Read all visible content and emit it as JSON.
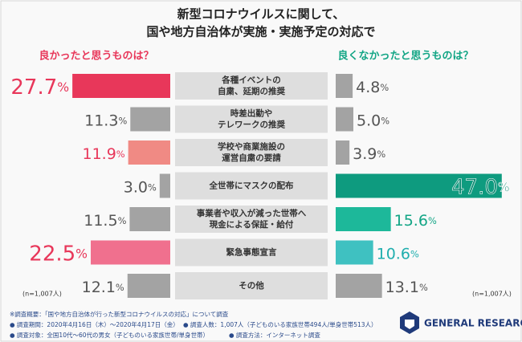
{
  "chart_data": {
    "type": "butterfly-bar",
    "title": [
      "新型コロナウイルスに関して、",
      "国や地方自治体が実施・実施予定の対応で"
    ],
    "categories": [
      "各種イベントの\n自粛、延期の推奨",
      "時差出勤や\nテレワークの推奨",
      "学校や商業施設の\n運営自粛の要請",
      "全世帯にマスクの配布",
      "事業者や収入が減った世帯へ\n現金による保証・給付",
      "緊急事態宣言",
      "その他"
    ],
    "series": [
      {
        "name": "良かったと思うものは？",
        "color": "#e8375a",
        "colors": [
          "#e8375a",
          "#a3a3a3",
          "#f08a84",
          "#a3a3a3",
          "#a3a3a3",
          "#f0708e",
          "#a3a3a3"
        ],
        "label_colors": [
          "#e8375a",
          "#555555",
          "#e8375a",
          "#555555",
          "#555555",
          "#e8375a",
          "#555555"
        ],
        "values": [
          27.7,
          11.3,
          11.9,
          3.0,
          11.5,
          22.5,
          12.1
        ],
        "value_labels": [
          "27.7%",
          "11.3%",
          "11.9%",
          "3.0%",
          "11.5%",
          "22.5%",
          "12.1%"
        ]
      },
      {
        "name": "良くなかったと思うものは？",
        "color": "#12a585",
        "colors": [
          "#a3a3a3",
          "#a3a3a3",
          "#a3a3a3",
          "#0e9b7f",
          "#1db89a",
          "#3fc1c1",
          "#a3a3a3"
        ],
        "label_colors": [
          "#555555",
          "#555555",
          "#555555",
          "#0e8a72",
          "#12a585",
          "#1faeae",
          "#555555"
        ],
        "values": [
          4.8,
          5.0,
          3.9,
          47.0,
          15.6,
          10.6,
          13.1
        ],
        "value_labels": [
          "4.8%",
          "5.0%",
          "3.9%",
          "47.0%",
          "15.6%",
          "10.6%",
          "13.1%"
        ]
      }
    ],
    "sample_notes": [
      "(n=1,007人)",
      "(n=1,007人)"
    ],
    "footnotes": [
      "※調査概要：「国や地方自治体が行った新型コロナウイルスの対応」について調査",
      "● 調査期間：2020年4月16日（木）～2020年4月17日（金）",
      "● 調査人数：1,007人（子どものいる家族世帯494人/単身世帯513人）",
      "● 調査対象：全国10代～60代の男女（子どものいる家族世帯/単身世帯）",
      "● 調査方法：インターネット調査"
    ],
    "brand": "GENERAL RESEARCH"
  }
}
